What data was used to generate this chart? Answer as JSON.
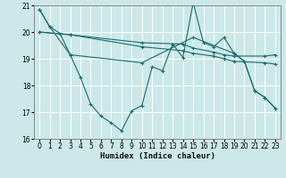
{
  "title": "",
  "xlabel": "Humidex (Indice chaleur)",
  "xlim": [
    -0.5,
    23.5
  ],
  "ylim": [
    16,
    21
  ],
  "yticks": [
    16,
    17,
    18,
    19,
    20,
    21
  ],
  "xticks": [
    0,
    1,
    2,
    3,
    4,
    5,
    6,
    7,
    8,
    9,
    10,
    11,
    12,
    13,
    14,
    15,
    16,
    17,
    18,
    19,
    20,
    21,
    22,
    23
  ],
  "bg_color": "#cce8e8",
  "plot_bg_color": "#cce8e8",
  "line_color": "#1a6b6b",
  "grid_color": "#ffffff",
  "line1_x": [
    0,
    1,
    2,
    3,
    4,
    5,
    6,
    7,
    8,
    9,
    10,
    11,
    12,
    13,
    14,
    15,
    16,
    17,
    18,
    19,
    20,
    21,
    22,
    23
  ],
  "line1_y": [
    20.85,
    20.2,
    19.95,
    19.15,
    18.3,
    17.3,
    16.85,
    16.6,
    16.3,
    17.05,
    17.25,
    18.7,
    18.55,
    19.55,
    19.05,
    21.1,
    19.6,
    19.45,
    19.8,
    19.2,
    18.9,
    17.8,
    17.55,
    17.15
  ],
  "line2_x": [
    0,
    3,
    10,
    14,
    15,
    17,
    18,
    19,
    22,
    23
  ],
  "line2_y": [
    20.0,
    19.9,
    19.6,
    19.55,
    19.4,
    19.25,
    19.15,
    19.1,
    19.1,
    19.15
  ],
  "line3_x": [
    0,
    3,
    10,
    14,
    15,
    17,
    18,
    19,
    22,
    23
  ],
  "line3_y": [
    20.0,
    19.9,
    19.45,
    19.3,
    19.2,
    19.1,
    19.0,
    18.9,
    18.85,
    18.8
  ],
  "line4_x": [
    0,
    1,
    3,
    10,
    15,
    19,
    20,
    21,
    22,
    23
  ],
  "line4_y": [
    20.85,
    20.2,
    19.15,
    18.85,
    19.8,
    19.2,
    18.9,
    17.8,
    17.55,
    17.15
  ]
}
